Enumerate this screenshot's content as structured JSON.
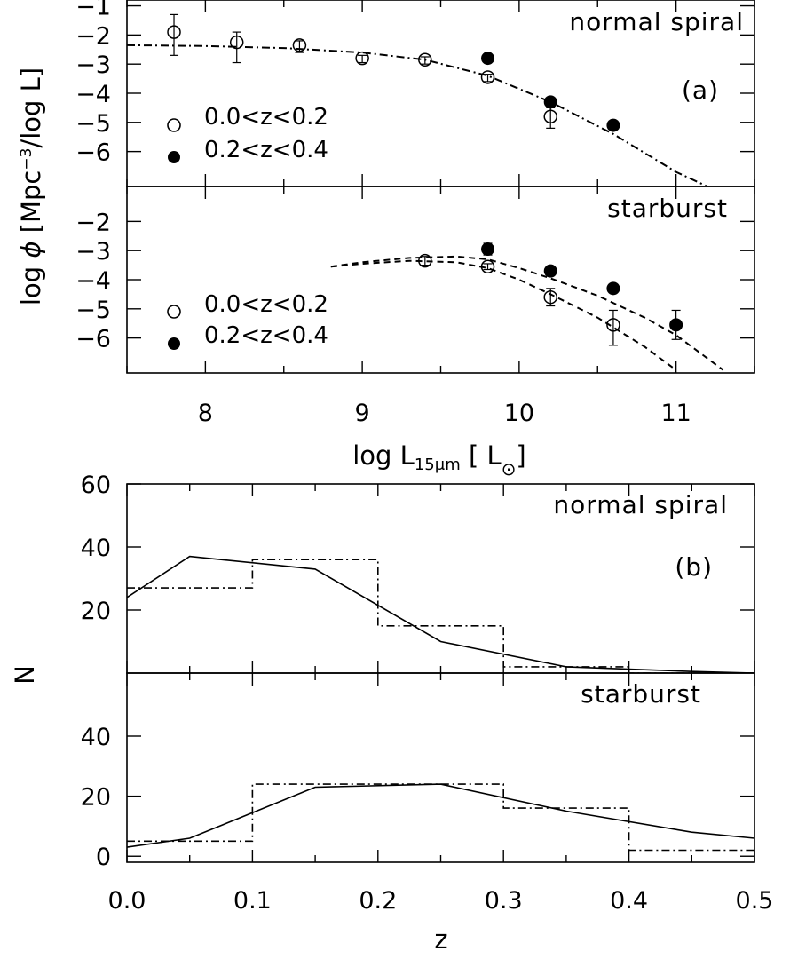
{
  "figure_labels": {
    "top_ylabel_prefix": "log ",
    "top_ylabel_phi": "ϕ",
    "top_ylabel_units": " [Mpc",
    "top_ylabel_sup": "−3",
    "top_ylabel_suffix": "/log L]",
    "top_xlabel_prefix": "log L",
    "top_xlabel_sub": "15μm",
    "top_xlabel_open": " [ L",
    "top_xlabel_sun": "⊙",
    "top_xlabel_close": "]",
    "bottom_ylabel": "N",
    "bottom_xlabel": "z"
  },
  "chart_data": [
    {
      "panel": "(a) top",
      "type": "scatter",
      "title": "normal spiral",
      "panel_tag": "(a)",
      "xlabel": "log L15μm [ L⊙]",
      "ylabel": "log ϕ [Mpc−3/log L]",
      "xlim": [
        7.5,
        11.5
      ],
      "ylim": [
        -7.0,
        -1.0
      ],
      "yticks": [
        -1,
        -2,
        -3,
        -4,
        -5,
        -6
      ],
      "legend_position": "middle-left",
      "series": [
        {
          "name": "0.0<z<0.2",
          "marker": "open-circle",
          "points": [
            {
              "x": 7.8,
              "y": -1.9,
              "err_lo": 0.8,
              "err_hi": 0.6
            },
            {
              "x": 8.2,
              "y": -2.25,
              "err_lo": 0.7,
              "err_hi": 0.35
            },
            {
              "x": 8.6,
              "y": -2.35,
              "err_lo": 0.25,
              "err_hi": 0.15
            },
            {
              "x": 9.0,
              "y": -2.8,
              "err_lo": 0.15,
              "err_hi": 0.1
            },
            {
              "x": 9.4,
              "y": -2.85,
              "err_lo": 0.15,
              "err_hi": 0.1
            },
            {
              "x": 9.8,
              "y": -3.45,
              "err_lo": 0.15,
              "err_hi": 0.1
            },
            {
              "x": 10.2,
              "y": -4.8,
              "err_lo": 0.4,
              "err_hi": 0.3
            }
          ]
        },
        {
          "name": "0.2<z<0.4",
          "marker": "filled-circle",
          "points": [
            {
              "x": 9.8,
              "y": -2.8
            },
            {
              "x": 10.2,
              "y": -4.3
            },
            {
              "x": 10.6,
              "y": -5.1
            }
          ]
        },
        {
          "name": "",
          "style": "dash-dot",
          "curve": [
            [
              7.5,
              -2.35
            ],
            [
              8.0,
              -2.38
            ],
            [
              8.5,
              -2.45
            ],
            [
              9.0,
              -2.6
            ],
            [
              9.4,
              -2.85
            ],
            [
              9.8,
              -3.4
            ],
            [
              10.2,
              -4.3
            ],
            [
              10.6,
              -5.4
            ],
            [
              11.0,
              -6.7
            ],
            [
              11.2,
              -7.2
            ]
          ]
        }
      ]
    },
    {
      "panel": "(a) bottom",
      "type": "scatter",
      "title": "starburst",
      "xlim": [
        7.5,
        11.5
      ],
      "ylim": [
        -7.0,
        -1.0
      ],
      "xticks": [
        8,
        9,
        10,
        11
      ],
      "yticks": [
        -2,
        -3,
        -4,
        -5,
        -6
      ],
      "legend_position": "lower-left",
      "series": [
        {
          "name": "0.0<z<0.2",
          "marker": "open-circle",
          "points": [
            {
              "x": 9.4,
              "y": -3.35,
              "err_lo": 0.15,
              "err_hi": 0.15
            },
            {
              "x": 9.8,
              "y": -3.55,
              "err_lo": 0.1,
              "err_hi": 0.1
            },
            {
              "x": 10.2,
              "y": -4.6,
              "err_lo": 0.3,
              "err_hi": 0.3
            },
            {
              "x": 10.6,
              "y": -5.55,
              "err_lo": 0.7,
              "err_hi": 0.5
            }
          ]
        },
        {
          "name": "0.2<z<0.4",
          "marker": "filled-circle",
          "points": [
            {
              "x": 9.8,
              "y": -2.95,
              "err_lo": 0.2,
              "err_hi": 0.2
            },
            {
              "x": 10.2,
              "y": -3.7
            },
            {
              "x": 10.6,
              "y": -4.3
            },
            {
              "x": 11.0,
              "y": -5.55,
              "err_lo": 0.5,
              "err_hi": 0.5
            }
          ]
        },
        {
          "name": "",
          "style": "dashed",
          "curve": [
            [
              8.8,
              -3.55
            ],
            [
              9.0,
              -3.4
            ],
            [
              9.3,
              -3.25
            ],
            [
              9.6,
              -3.2
            ],
            [
              9.8,
              -3.3
            ],
            [
              10.0,
              -3.6
            ],
            [
              10.2,
              -3.95
            ],
            [
              10.5,
              -4.55
            ],
            [
              10.8,
              -5.3
            ],
            [
              11.0,
              -5.9
            ],
            [
              11.15,
              -6.5
            ],
            [
              11.3,
              -7.1
            ]
          ]
        },
        {
          "name": "",
          "style": "dashed",
          "curve": [
            [
              8.8,
              -3.55
            ],
            [
              9.0,
              -3.45
            ],
            [
              9.3,
              -3.35
            ],
            [
              9.6,
              -3.4
            ],
            [
              9.8,
              -3.6
            ],
            [
              10.0,
              -4.0
            ],
            [
              10.2,
              -4.5
            ],
            [
              10.5,
              -5.3
            ],
            [
              10.8,
              -6.3
            ],
            [
              11.0,
              -7.1
            ]
          ]
        }
      ]
    },
    {
      "panel": "(b) top",
      "type": "line",
      "title": "normal spiral",
      "panel_tag": "(b)",
      "xlabel": "z",
      "ylabel": "N",
      "xlim": [
        0.0,
        0.5
      ],
      "ylim": [
        0,
        60
      ],
      "yticks": [
        20,
        40,
        60
      ],
      "series": [
        {
          "name": "",
          "style": "solid",
          "x": [
            0.0,
            0.05,
            0.15,
            0.25,
            0.35,
            0.45,
            0.5
          ],
          "y": [
            24,
            37,
            33,
            10,
            2,
            0.5,
            0
          ]
        },
        {
          "name": "",
          "style": "dash-dot-step",
          "bin_edges": [
            0.0,
            0.1,
            0.2,
            0.3,
            0.4,
            0.5
          ],
          "counts": [
            27,
            36,
            15,
            2,
            0
          ]
        }
      ]
    },
    {
      "panel": "(b) bottom",
      "type": "line",
      "title": "starburst",
      "xlim": [
        0.0,
        0.5
      ],
      "ylim": [
        -2,
        60
      ],
      "xticks": [
        0.0,
        0.1,
        0.2,
        0.3,
        0.4,
        0.5
      ],
      "xtick_labels": [
        "0.0",
        "0.1",
        "0.2",
        "0.3",
        "0.4",
        "0.5"
      ],
      "yticks": [
        0,
        20,
        40
      ],
      "series": [
        {
          "name": "",
          "style": "solid",
          "x": [
            0.0,
            0.05,
            0.15,
            0.25,
            0.35,
            0.45,
            0.5
          ],
          "y": [
            3,
            6,
            23,
            24,
            15,
            8,
            6
          ]
        },
        {
          "name": "",
          "style": "dash-dot-step",
          "bin_edges": [
            0.0,
            0.1,
            0.2,
            0.3,
            0.4,
            0.5
          ],
          "counts": [
            5,
            24,
            24,
            16,
            2
          ]
        }
      ]
    }
  ]
}
